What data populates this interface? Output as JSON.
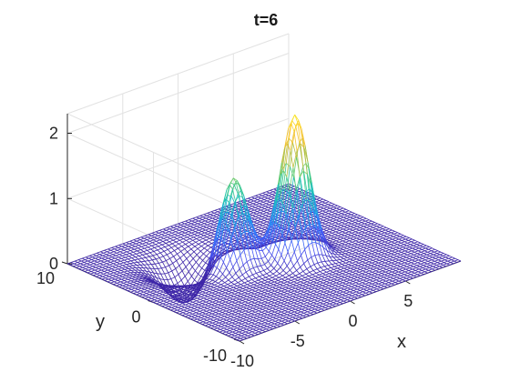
{
  "chart_data": {
    "type": "surface",
    "title": "t=6",
    "xlabel": "x",
    "ylabel": "y",
    "zlabel": "",
    "xlim": [
      -10,
      10
    ],
    "ylim": [
      -10,
      10
    ],
    "zlim": [
      0,
      2.3
    ],
    "x_ticks": [
      -10,
      -5,
      0,
      5
    ],
    "y_ticks": [
      -10,
      0,
      10
    ],
    "z_ticks": [
      0,
      1,
      2
    ],
    "x_tick_labels": [
      "-10",
      "-5",
      "0",
      "5"
    ],
    "y_tick_labels": [
      "-10",
      "0",
      "10"
    ],
    "z_tick_labels": [
      "0",
      "1",
      "2"
    ],
    "grid": true,
    "colormap": [
      "#3e26a8",
      "#4753f5",
      "#2c84fb",
      "#12b0d8",
      "#25c7a5",
      "#7ccc61",
      "#d4bc3a",
      "#fec934",
      "#f7e821"
    ],
    "peaks": [
      {
        "x": 2,
        "y": -1,
        "z": 2.2
      },
      {
        "x": -2,
        "y": 1,
        "z": 1.4
      }
    ],
    "trough": {
      "x": -4,
      "y": 4,
      "z": -0.6
    },
    "grid_resolution": 60
  }
}
